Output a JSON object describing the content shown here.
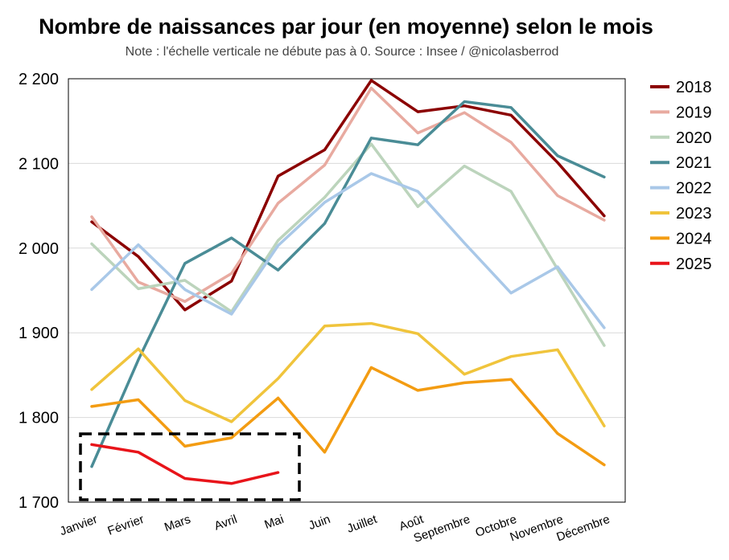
{
  "chart_data": {
    "type": "line",
    "title": "Nombre de naissances par jour (en moyenne) selon le mois",
    "subtitle": "Note : l'échelle verticale ne débute pas à 0. Source : Insee / @nicolasberrod",
    "categories": [
      "Janvier",
      "Février",
      "Mars",
      "Avril",
      "Mai",
      "Juin",
      "Juillet",
      "Août",
      "Septembre",
      "Octobre",
      "Novembre",
      "Décembre"
    ],
    "ylim": [
      1700,
      2200
    ],
    "yticks": [
      1700,
      1800,
      1900,
      2000,
      2100,
      2200
    ],
    "ytick_labels": [
      "1 700",
      "1 800",
      "1 900",
      "2 000",
      "2 100",
      "2 200"
    ],
    "grid": true,
    "legend_position": "right",
    "highlight": "dashed box around Janvier–Mai, 1 700–1 780",
    "series": [
      {
        "name": "2018",
        "color": "#8b0000",
        "values": [
          2031,
          1990,
          1927,
          1961,
          2085,
          2116,
          2198,
          2161,
          2168,
          2157,
          2101,
          2038
        ]
      },
      {
        "name": "2019",
        "color": "#e8aaa0",
        "values": [
          2037,
          1960,
          1937,
          1970,
          2053,
          2098,
          2189,
          2136,
          2160,
          2125,
          2062,
          2033
        ]
      },
      {
        "name": "2020",
        "color": "#bcd4bc",
        "values": [
          2005,
          1952,
          1962,
          1925,
          2009,
          2060,
          2123,
          2049,
          2097,
          2067,
          1975,
          1885
        ]
      },
      {
        "name": "2021",
        "color": "#4a8c96",
        "values": [
          1742,
          1868,
          1982,
          2012,
          1974,
          2029,
          2130,
          2122,
          2173,
          2166,
          2109,
          2084
        ]
      },
      {
        "name": "2022",
        "color": "#a9c8e8",
        "values": [
          1951,
          2004,
          1951,
          1922,
          2003,
          2054,
          2088,
          2067,
          2006,
          1947,
          1978,
          1906
        ]
      },
      {
        "name": "2023",
        "color": "#f0c43c",
        "values": [
          1833,
          1881,
          1820,
          1795,
          1846,
          1908,
          1911,
          1899,
          1851,
          1872,
          1880,
          1790
        ]
      },
      {
        "name": "2024",
        "color": "#f39c12",
        "values": [
          1813,
          1821,
          1766,
          1776,
          1823,
          1759,
          1859,
          1832,
          1841,
          1845,
          1781,
          1744
        ]
      },
      {
        "name": "2025",
        "color": "#e8141a",
        "values": [
          1768,
          1759,
          1728,
          1722,
          1735,
          null,
          null,
          null,
          null,
          null,
          null,
          null
        ]
      }
    ]
  }
}
